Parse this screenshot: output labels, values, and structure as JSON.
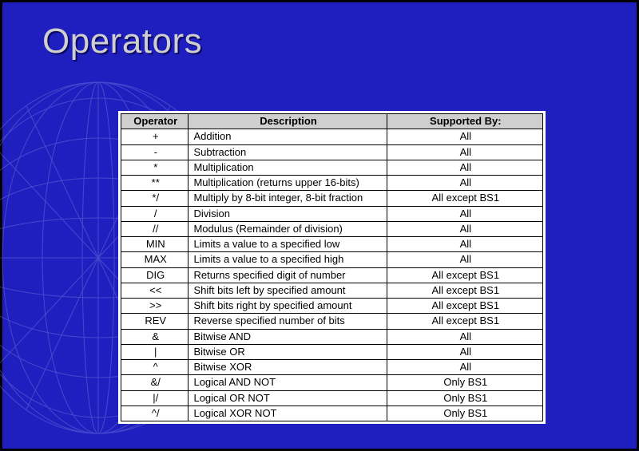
{
  "slide": {
    "title": "Operators",
    "background_color": "#1f1fbf",
    "title_color_fg": "#cfcfcf",
    "title_color_shadow": "#0a0a60",
    "title_fontsize": 44,
    "wireframe_stroke": "#8a8ae8"
  },
  "table": {
    "type": "table",
    "background_color": "#ffffff",
    "header_background": "#cfcfcf",
    "border_color": "#000000",
    "cell_fontsize": 13,
    "columns": [
      {
        "label": "Operator",
        "align": "center",
        "width_pct": 16
      },
      {
        "label": "Description",
        "align": "left",
        "width_pct": 47
      },
      {
        "label": "Supported By:",
        "align": "center",
        "width_pct": 37
      }
    ],
    "rows": [
      [
        "+",
        "Addition",
        "All"
      ],
      [
        "-",
        "Subtraction",
        "All"
      ],
      [
        "*",
        "Multiplication",
        "All"
      ],
      [
        "**",
        "Multiplication (returns upper 16-bits)",
        "All"
      ],
      [
        "*/",
        "Multiply by 8-bit integer, 8-bit fraction",
        "All except BS1"
      ],
      [
        "/",
        "Division",
        "All"
      ],
      [
        "//",
        "Modulus (Remainder of division)",
        "All"
      ],
      [
        "MIN",
        "Limits a value to a specified low",
        "All"
      ],
      [
        "MAX",
        "Limits a value to a specified high",
        "All"
      ],
      [
        "DIG",
        "Returns specified digit of number",
        "All except BS1"
      ],
      [
        "<<",
        "Shift bits left by specified amount",
        "All except BS1"
      ],
      [
        ">>",
        "Shift bits right by specified amount",
        "All except BS1"
      ],
      [
        "REV",
        "Reverse specified number of bits",
        "All except BS1"
      ],
      [
        "&",
        "Bitwise AND",
        "All"
      ],
      [
        "|",
        "Bitwise OR",
        "All"
      ],
      [
        "^",
        "Bitwise XOR",
        "All"
      ],
      [
        "&/",
        "Logical AND NOT",
        "Only BS1"
      ],
      [
        "|/",
        "Logical OR NOT",
        "Only BS1"
      ],
      [
        "^/",
        "Logical XOR NOT",
        "Only BS1"
      ]
    ]
  }
}
